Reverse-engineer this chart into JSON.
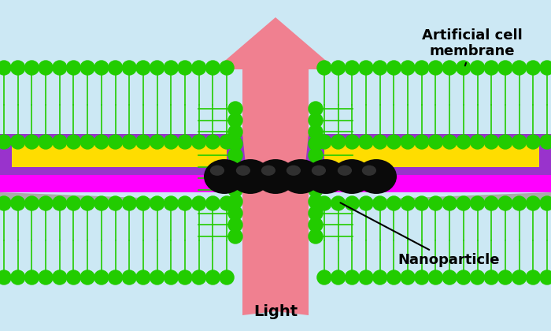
{
  "bg_color": "#cce8f4",
  "arrow_color": "#f08090",
  "purple_color": "#9933cc",
  "yellow_color": "#ffdd00",
  "magenta_color": "#ff00ff",
  "gray_color": "#aaaaaa",
  "green_color": "#22cc00",
  "black_color": "#111111",
  "label_membrane": "Artificial cell\nmembrane",
  "label_light": "Light",
  "label_nanoparticle": "Nanoparticle",
  "font_size_label": 13,
  "font_weight": "bold",
  "fig_w": 7.0,
  "fig_h": 4.2
}
